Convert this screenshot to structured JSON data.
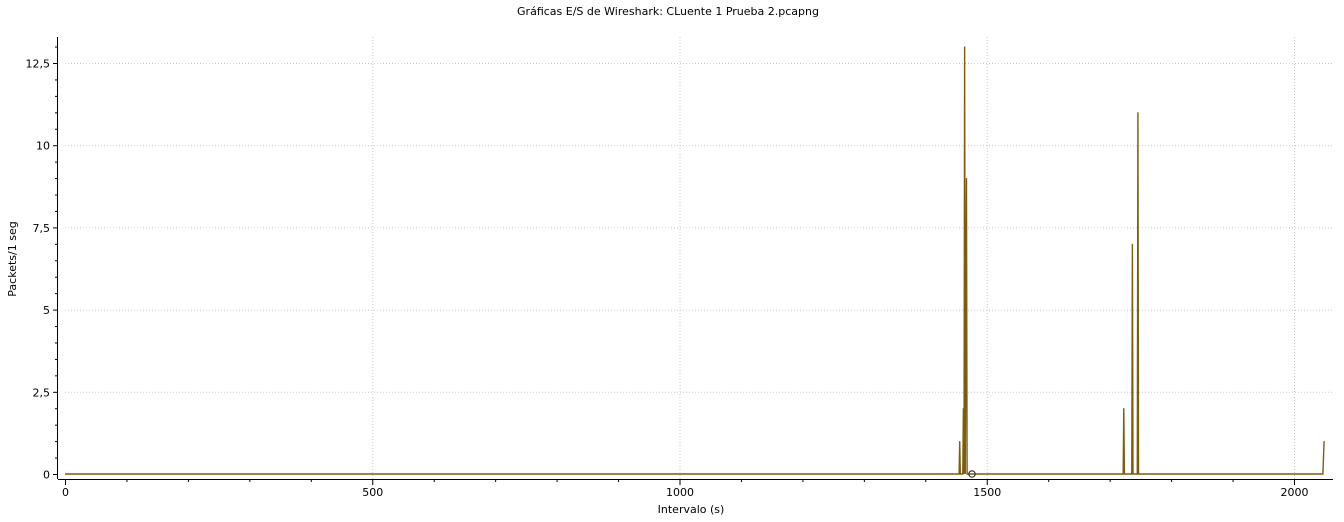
{
  "window": {
    "title": "Gráficas E/S de Wireshark: CLuente 1 Prueba 2.pcapng"
  },
  "colors": {
    "series": "#7d5c0e",
    "grid": "#c8c8c8",
    "axis": "#000000",
    "background": "#ffffff"
  },
  "chart_data": {
    "type": "line",
    "title": "Gráficas E/S de Wireshark: CLuente 1 Prueba 2.pcapng",
    "xlabel": "Intervalo (s)",
    "ylabel": "Packets/1 seg",
    "xlim": [
      0,
      2050
    ],
    "ylim": [
      0,
      13
    ],
    "x_ticks": [
      0,
      500,
      1000,
      1500,
      2000
    ],
    "x_tick_labels": [
      "0",
      "500",
      "1000",
      "1500",
      "2000"
    ],
    "y_ticks": [
      0,
      2.5,
      5,
      7.5,
      10,
      12.5
    ],
    "y_tick_labels": [
      "0",
      "2,5",
      "5",
      "7,5",
      "10",
      "12,5"
    ],
    "grid": true,
    "legend": "none",
    "cursor_marker": {
      "x": 1476,
      "y": 0
    },
    "series": [
      {
        "color": "#7d5c0e",
        "points": [
          [
            0,
            0
          ],
          [
            1455,
            0
          ],
          [
            1456,
            1
          ],
          [
            1457,
            0
          ],
          [
            1461,
            0
          ],
          [
            1462,
            2
          ],
          [
            1463,
            0
          ],
          [
            1464,
            13
          ],
          [
            1465,
            0
          ],
          [
            1467,
            9
          ],
          [
            1468,
            0
          ],
          [
            1722,
            0
          ],
          [
            1723,
            2
          ],
          [
            1724,
            0
          ],
          [
            1736,
            0
          ],
          [
            1737,
            7
          ],
          [
            1738,
            0
          ],
          [
            1745,
            0
          ],
          [
            1746,
            11
          ],
          [
            1747,
            0
          ],
          [
            2047,
            0
          ],
          [
            2049,
            1
          ]
        ]
      }
    ]
  }
}
